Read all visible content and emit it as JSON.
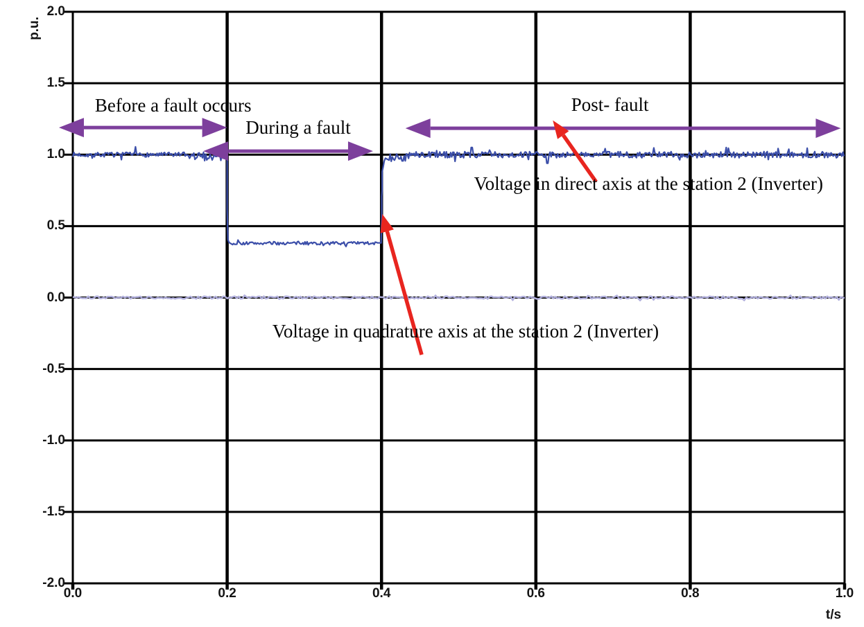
{
  "chart_data": {
    "type": "line",
    "title": "",
    "xlabel": "t/s",
    "ylabel": "p.u.",
    "xlim": [
      0.0,
      1.0
    ],
    "ylim": [
      -2.0,
      2.0
    ],
    "xticks": [
      "0.0",
      "0.2",
      "0.4",
      "0.6",
      "0.8",
      "1.0"
    ],
    "yticks": [
      "2.0",
      "1.5",
      "1.0",
      "0.5",
      "0.0",
      "-0.5",
      "-1.0",
      "-1.5",
      "-2.0"
    ],
    "grid": true,
    "legend": "none",
    "events": {
      "fault_start_s": 0.2,
      "fault_end_s": 0.4,
      "prefault_direct_pu": 1.0,
      "fault_direct_pu": 0.38,
      "postfault_direct_pu": 1.0,
      "quadrature_pu": 0.0
    },
    "series": [
      {
        "name": "Voltage in direct axis at the station 2 (Inverter)",
        "color": "#3b4ea9",
        "dt": 0.0014,
        "segments": [
          {
            "x0": 0.0,
            "x1": 0.2,
            "level": 1.0,
            "noise": 0.016
          },
          {
            "x0": 0.2,
            "x1": 0.4,
            "level": 0.38,
            "noise": 0.011
          },
          {
            "x0": 0.4,
            "x1": 1.0,
            "level": 1.0,
            "noise": 0.022
          }
        ],
        "noise_zones": [
          {
            "x0": 0.14,
            "x1": 0.199,
            "amp": 0.03,
            "bias": -0.012
          },
          {
            "x0": 0.406,
            "x1": 0.435,
            "amp": 0.028,
            "bias": -0.02
          }
        ],
        "spikes": [
          {
            "t": 0.081,
            "pu": 1.055
          },
          {
            "t": 0.517,
            "pu": 1.05
          },
          {
            "t": 0.615,
            "pu": 0.94
          },
          {
            "t": 0.847,
            "pu": 1.05
          }
        ],
        "edge_points": [
          [
            0.2,
            1.0
          ],
          [
            0.2,
            0.62
          ],
          [
            0.2005,
            0.5
          ],
          [
            0.201,
            0.405
          ],
          [
            0.2025,
            0.385
          ],
          [
            0.3995,
            0.382
          ],
          [
            0.4,
            0.5
          ],
          [
            0.4003,
            0.545
          ],
          [
            0.4003,
            0.71
          ],
          [
            0.4008,
            0.75
          ],
          [
            0.4008,
            0.88
          ],
          [
            0.402,
            0.91
          ],
          [
            0.4035,
            0.955
          ],
          [
            0.405,
            0.975
          ]
        ]
      },
      {
        "name": "Voltage in quadrature axis at the station 2 (Inverter)",
        "color": "#b2b0dd",
        "dt": 0.0025,
        "segments": [
          {
            "x0": 0.0,
            "x1": 1.0,
            "level": 0.0,
            "noise": 0.009
          }
        ]
      }
    ],
    "annotations": {
      "labels": [
        {
          "id": "before-fault",
          "text": "Before a fault occurs",
          "t": 0.13,
          "pu": 1.345
        },
        {
          "id": "during-fault",
          "text": "During a fault",
          "t": 0.292,
          "pu": 1.19
        },
        {
          "id": "post-fault",
          "text": "Post- fault",
          "t": 0.696,
          "pu": 1.35
        },
        {
          "id": "direct-axis-caption",
          "text": "Voltage in direct axis at the station 2 (Inverter)",
          "t": 0.746,
          "pu": 0.8
        },
        {
          "id": "quadrature-axis-caption",
          "text": "Voltage in quadrature axis at the station 2 (Inverter)",
          "t": 0.509,
          "pu": -0.235
        }
      ],
      "span_arrows": [
        {
          "id": "before-fault-span",
          "t0": -0.018,
          "t1": 0.2,
          "pu": 1.19
        },
        {
          "id": "during-fault-span",
          "t0": 0.169,
          "t1": 0.389,
          "pu": 1.025
        },
        {
          "id": "post-fault-span",
          "t0": 0.431,
          "t1": 0.995,
          "pu": 1.185
        }
      ],
      "pointer_arrows": [
        {
          "id": "direct-axis-pointer",
          "from_t": 0.678,
          "from_pu": 0.81,
          "to_t": 0.622,
          "to_pu": 1.24
        },
        {
          "id": "quadrature-axis-pointer",
          "from_t": 0.452,
          "from_pu": -0.4,
          "to_t": 0.401,
          "to_pu": 0.585
        }
      ]
    },
    "colors": {
      "grid": "#000000",
      "span_arrow": "#7d3f9c",
      "pointer_arrow": "#e8251f",
      "background": "#ffffff"
    }
  }
}
